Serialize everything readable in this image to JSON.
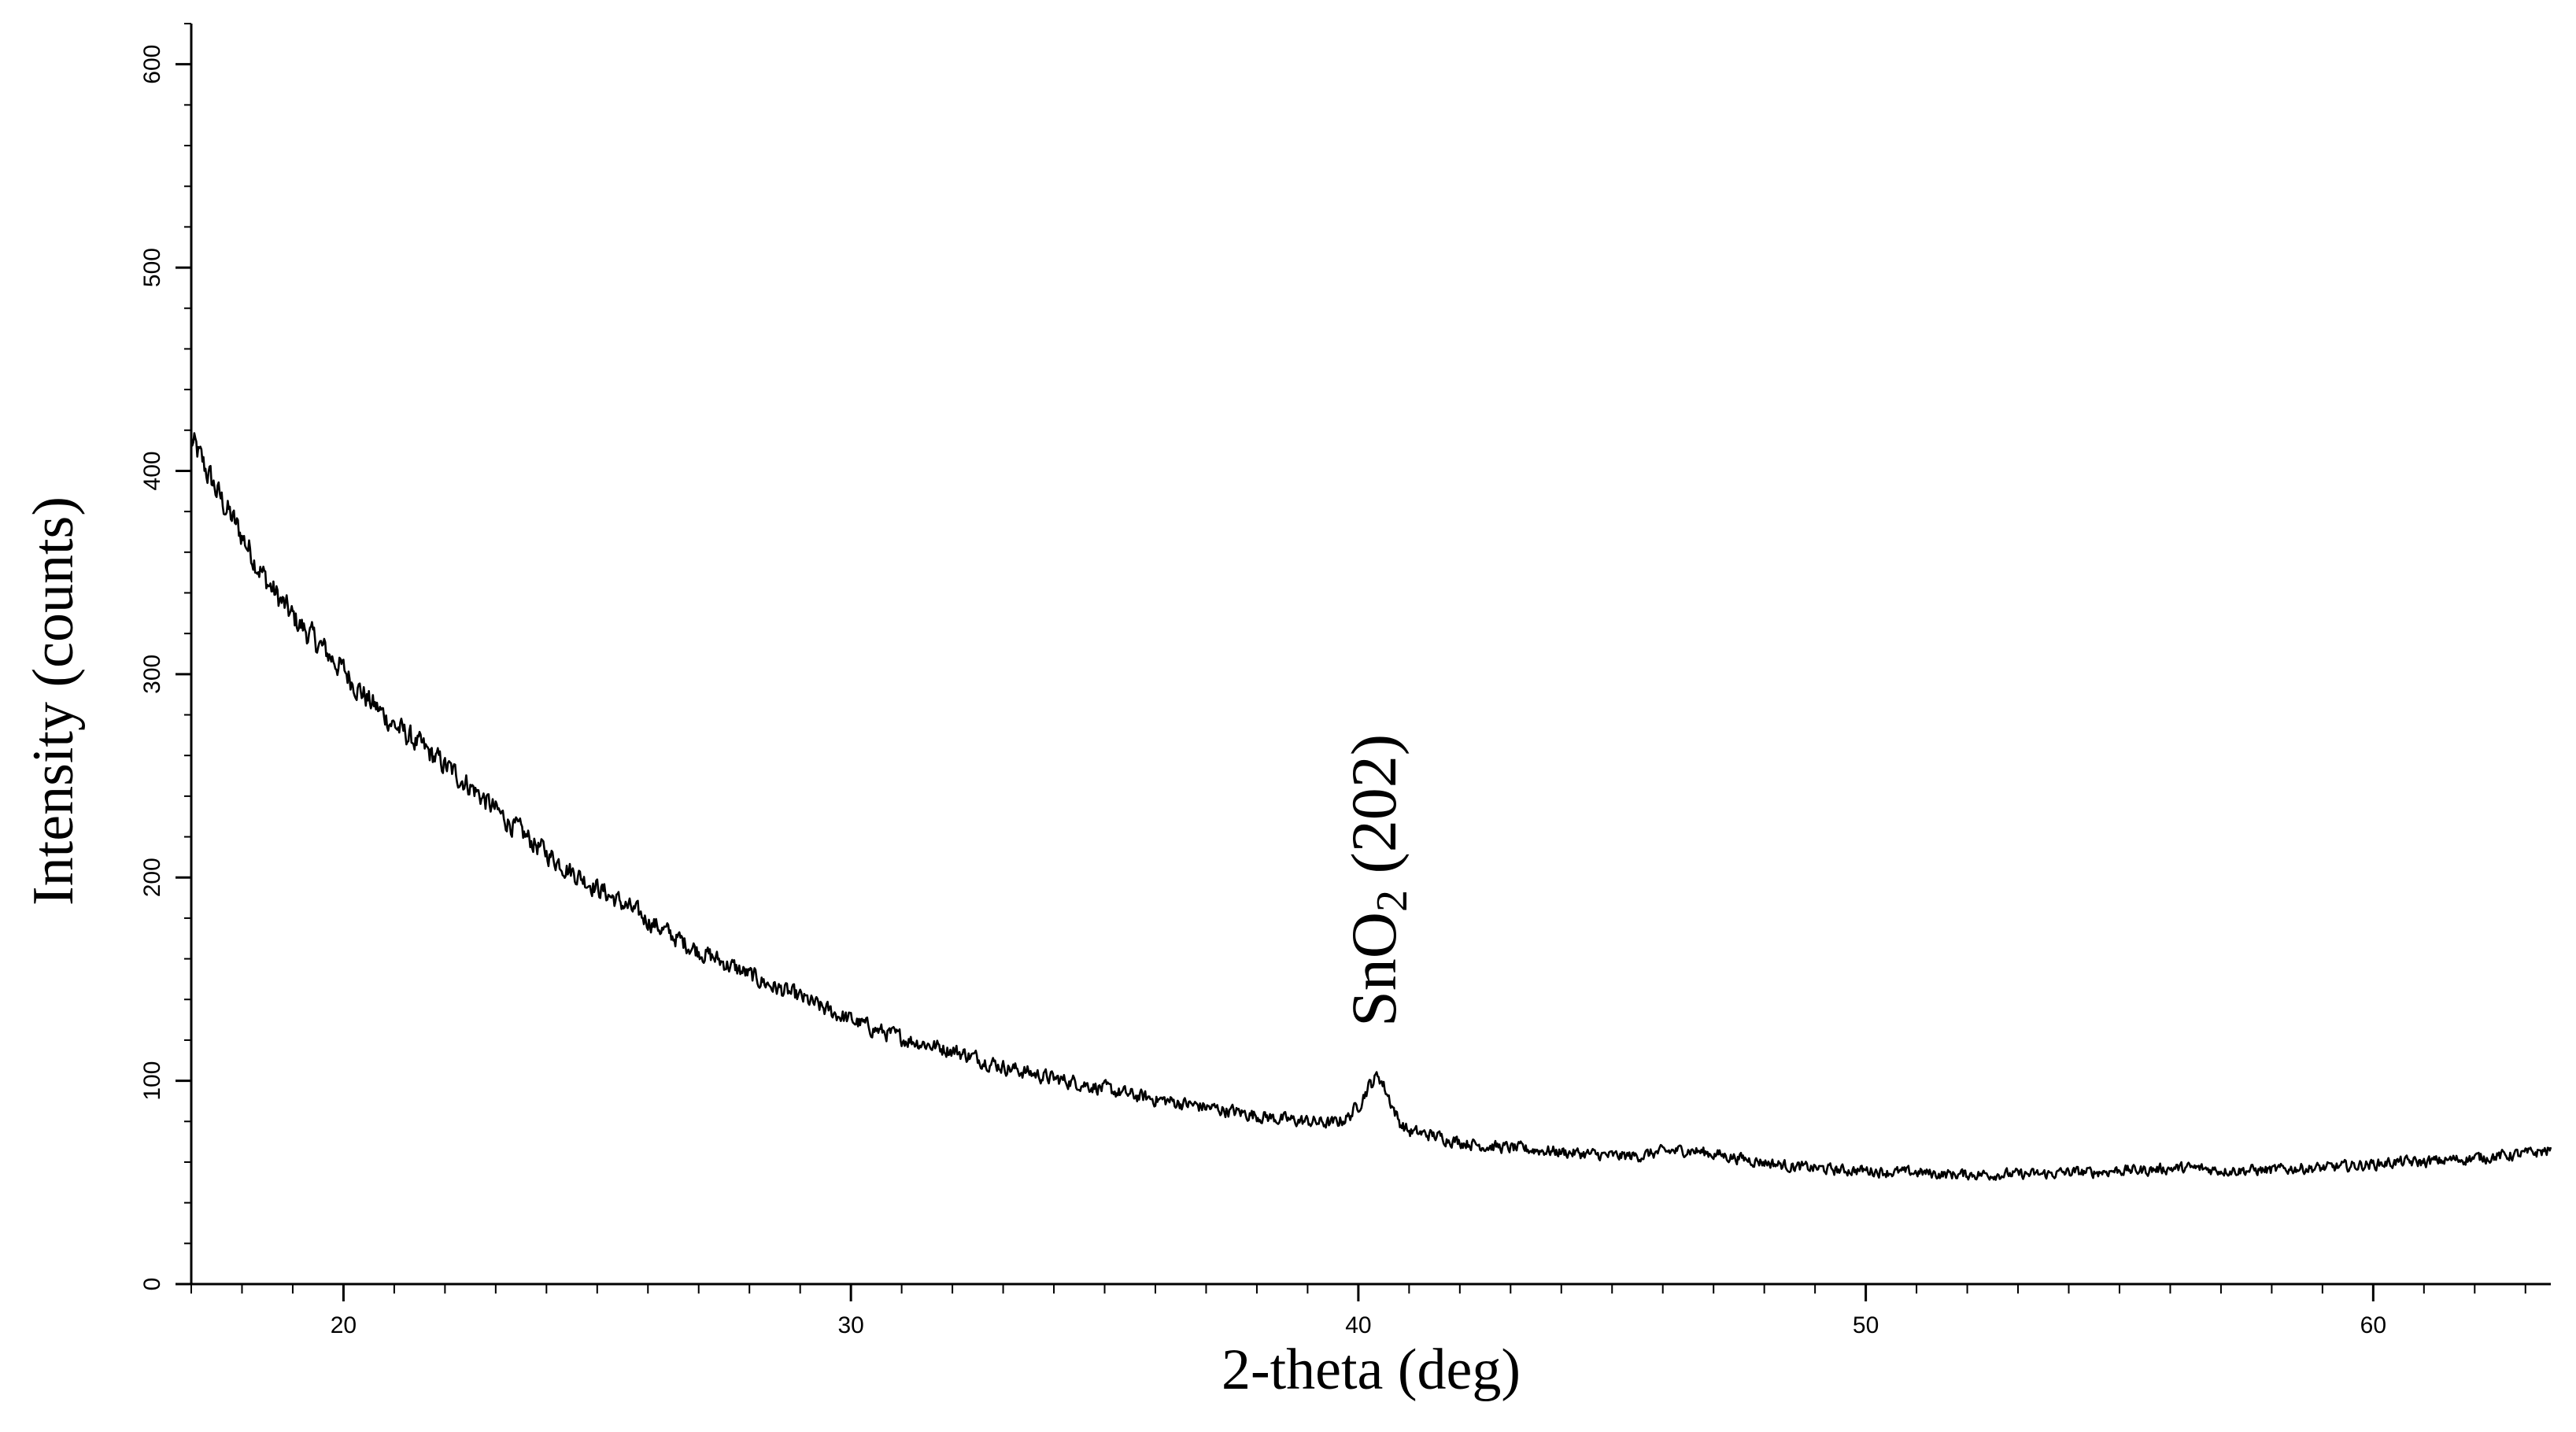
{
  "chart_data": {
    "type": "line",
    "title": "",
    "xlabel": "2-theta (deg)",
    "ylabel": "Intensity (counts)",
    "xlim": [
      17,
      63.5
    ],
    "ylim": [
      0,
      620
    ],
    "x_ticks": [
      20,
      30,
      40,
      50,
      60
    ],
    "y_ticks": [
      0,
      100,
      200,
      300,
      400,
      500,
      600
    ],
    "x_tick_labels": [
      "20",
      "30",
      "40",
      "50",
      "60"
    ],
    "y_tick_labels": [
      "0",
      "100",
      "200",
      "300",
      "400",
      "500",
      "600"
    ],
    "x_minor_step": 1,
    "y_minor_step": 20,
    "grid": false,
    "legend": "none",
    "line_color": "#000000",
    "series": [
      {
        "x": [
          17.0,
          17.5,
          18.0,
          18.5,
          19.0,
          19.5,
          20.0,
          20.5,
          21.0,
          21.5,
          22.0,
          22.5,
          23.0,
          23.5,
          24.0,
          24.5,
          25.0,
          25.5,
          26.0,
          26.5,
          27.0,
          27.5,
          28.0,
          28.5,
          29.0,
          29.5,
          30.0,
          30.5,
          31.0,
          31.5,
          32.0,
          32.5,
          33.0,
          33.5,
          34.0,
          34.5,
          35.0,
          35.5,
          36.0,
          36.5,
          37.0,
          37.5,
          38.0,
          38.5,
          39.0,
          39.5,
          39.8,
          40.0,
          40.2,
          40.4,
          40.6,
          40.8,
          41.0,
          41.5,
          42.0,
          42.5,
          43.0,
          43.5,
          44.0,
          44.5,
          45.0,
          45.5,
          46.0,
          46.5,
          47.0,
          47.5,
          48.0,
          48.5,
          49.0,
          49.5,
          50.0,
          50.5,
          51.0,
          51.5,
          52.0,
          52.5,
          53.0,
          53.5,
          54.0,
          54.5,
          55.0,
          55.5,
          56.0,
          56.5,
          57.0,
          57.5,
          58.0,
          58.5,
          59.0,
          59.5,
          60.0,
          60.5,
          61.0,
          61.5,
          62.0,
          62.5,
          63.0,
          63.5
        ],
        "y": [
          415,
          390,
          368,
          345,
          328,
          315,
          302,
          287,
          275,
          265,
          255,
          245,
          233,
          222,
          212,
          203,
          195,
          187,
          179,
          171,
          164,
          158,
          152,
          146,
          141,
          135,
          130,
          125,
          121,
          118,
          115,
          111,
          107,
          104,
          101,
          99,
          96,
          93,
          91,
          89,
          87,
          85,
          83,
          81,
          80,
          79,
          82,
          88,
          97,
          103,
          92,
          80,
          75,
          73,
          70,
          68,
          67,
          66,
          65,
          64,
          63,
          63,
          65,
          66,
          64,
          62,
          60,
          58,
          57,
          56,
          56,
          55,
          55,
          54,
          54,
          54,
          54,
          54,
          55,
          55,
          56,
          56,
          57,
          57,
          56,
          56,
          56,
          57,
          57,
          58,
          59,
          60,
          60,
          61,
          62,
          63,
          64,
          66
        ]
      }
    ],
    "annotations": [
      {
        "text_main": "SnO",
        "text_sub": "2",
        "text_tail": " (202)",
        "x": 40.3,
        "y": 115,
        "orientation": "vertical"
      }
    ]
  }
}
